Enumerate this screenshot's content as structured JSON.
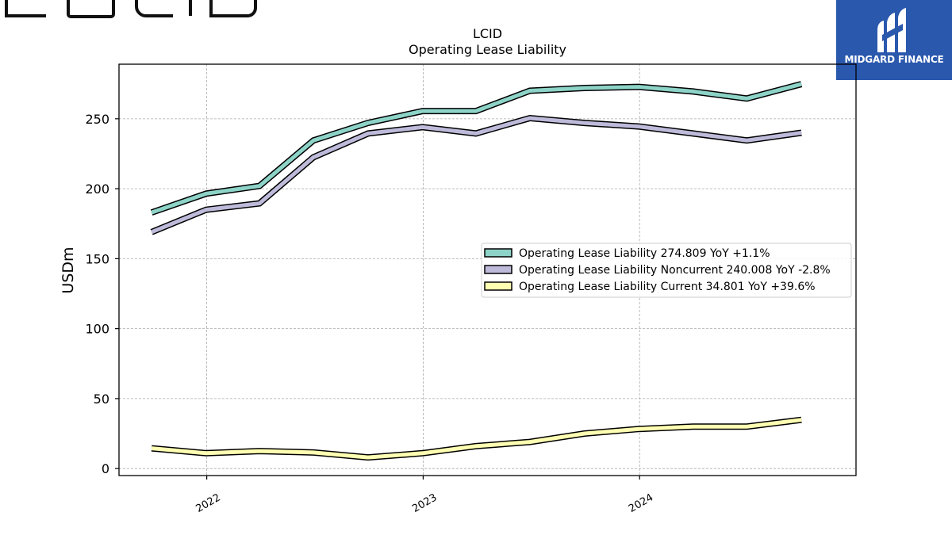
{
  "logos": {
    "brand": "LUCID",
    "watermark": "MIDGARD FINANCE"
  },
  "chart_data": {
    "type": "line",
    "title": "LCID",
    "subtitle": "Operating Lease Liability",
    "xlabel": "",
    "ylabel": "USDm",
    "x_ticks": [
      "2022",
      "2023",
      "2024"
    ],
    "y_ticks": [
      0,
      50,
      100,
      150,
      200,
      250
    ],
    "ylim": [
      -5,
      289
    ],
    "xlim": [
      "2021-08-06",
      "2024-12-31"
    ],
    "grid": true,
    "legend_position": "center-right",
    "x": [
      "2021-09-30",
      "2021-12-31",
      "2022-03-31",
      "2022-06-30",
      "2022-09-30",
      "2022-12-31",
      "2023-03-31",
      "2023-06-30",
      "2023-09-30",
      "2023-12-31",
      "2024-03-31",
      "2024-06-30",
      "2024-09-30"
    ],
    "series": [
      {
        "name": "Operating Lease Liability",
        "legend": "Operating Lease Liability  274.809 YoY +1.1%",
        "color": "#8dd3c7",
        "values": [
          183,
          196.5,
          202,
          234.5,
          247,
          255.5,
          255.5,
          270,
          272,
          272.8,
          269.5,
          264.5,
          274.8
        ]
      },
      {
        "name": "Operating Lease Liability Noncurrent",
        "legend": "Operating Lease Liability Noncurrent  240.008 YoY -2.8%",
        "color": "#bebada",
        "values": [
          169,
          185,
          189.5,
          222.5,
          239.5,
          244,
          239.5,
          250.5,
          247,
          244.5,
          239.5,
          234.5,
          240
        ]
      },
      {
        "name": "Operating Lease Liability Current",
        "legend": "Operating Lease Liability Current  34.801 YoY +39.6%",
        "color": "#ffffb3",
        "values": [
          14.5,
          11,
          12.5,
          11.5,
          8,
          11,
          16,
          19,
          25,
          28.3,
          30,
          30,
          34.8
        ]
      }
    ]
  }
}
